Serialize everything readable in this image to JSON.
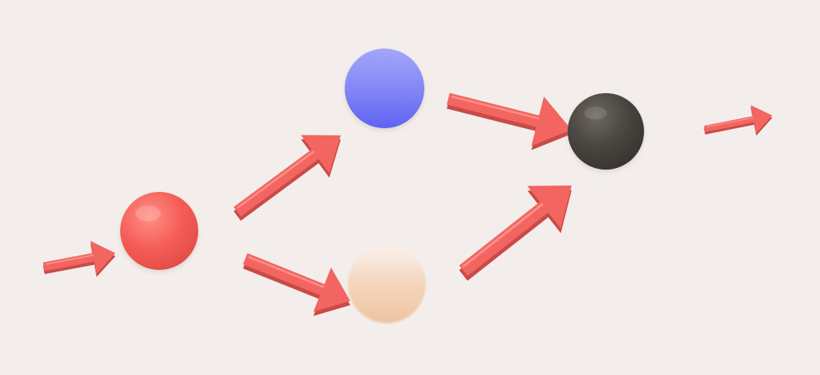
{
  "diagram": {
    "background": "#f3eeeb",
    "arrow_color": "#f26560",
    "nodes": [
      {
        "id": "red-node",
        "color": "#f25c56"
      },
      {
        "id": "blue-node",
        "color": "#6a6cf5"
      },
      {
        "id": "peach-node",
        "color": "#f0c8a6"
      },
      {
        "id": "dark-node",
        "color": "#443f3a"
      }
    ],
    "edges": [
      {
        "id": "input-arrow",
        "to": "red-node"
      },
      {
        "id": "red-to-blue-arrow",
        "from": "red-node",
        "to": "blue-node"
      },
      {
        "id": "red-to-peach-arrow",
        "from": "red-node",
        "to": "peach-node"
      },
      {
        "id": "blue-to-dark-arrow",
        "from": "blue-node",
        "to": "dark-node"
      },
      {
        "id": "peach-to-dark-arrow",
        "from": "peach-node",
        "to": "dark-node"
      },
      {
        "id": "output-arrow",
        "from": "dark-node"
      }
    ]
  }
}
